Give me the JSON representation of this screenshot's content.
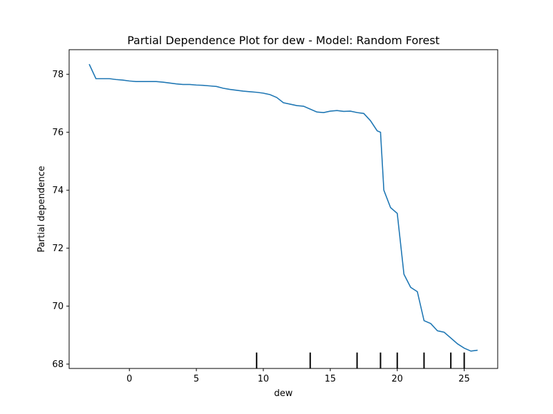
{
  "chart_data": {
    "type": "line",
    "title": "Partial Dependence Plot for dew - Model: Random Forest",
    "xlabel": "dew",
    "ylabel": "Partial dependence",
    "xlim": [
      -4.5,
      27.5
    ],
    "ylim": [
      67.85,
      78.85
    ],
    "xticks": [
      0,
      5,
      10,
      15,
      20,
      25
    ],
    "yticks": [
      68,
      70,
      72,
      74,
      76,
      78
    ],
    "grid": false,
    "line_color": "#1f77b4",
    "series": [
      {
        "x": [
          -3.0,
          -2.5,
          -2.0,
          -1.5,
          -1.0,
          -0.5,
          0.0,
          0.5,
          1.0,
          1.5,
          2.0,
          2.5,
          3.0,
          3.5,
          4.0,
          4.5,
          5.0,
          5.5,
          6.0,
          6.5,
          7.0,
          7.5,
          8.0,
          8.5,
          9.0,
          9.5,
          10.0,
          10.5,
          11.0,
          11.5,
          12.0,
          12.5,
          13.0,
          13.5,
          14.0,
          14.5,
          15.0,
          15.5,
          16.0,
          16.5,
          17.0,
          17.5,
          18.0,
          18.5,
          18.75,
          19.0,
          19.5,
          20.0,
          20.5,
          21.0,
          21.5,
          22.0,
          22.5,
          23.0,
          23.5,
          24.0,
          24.5,
          25.0,
          25.5,
          26.0
        ],
        "y": [
          78.35,
          77.85,
          77.85,
          77.85,
          77.82,
          77.8,
          77.77,
          77.75,
          77.75,
          77.75,
          77.75,
          77.73,
          77.7,
          77.67,
          77.65,
          77.65,
          77.63,
          77.62,
          77.6,
          77.58,
          77.52,
          77.48,
          77.45,
          77.42,
          77.4,
          77.38,
          77.35,
          77.3,
          77.2,
          77.02,
          76.97,
          76.92,
          76.9,
          76.8,
          76.7,
          76.68,
          76.73,
          76.75,
          76.72,
          76.73,
          76.68,
          76.65,
          76.4,
          76.05,
          76.0,
          74.0,
          73.4,
          73.2,
          71.1,
          70.65,
          70.5,
          69.5,
          69.4,
          69.15,
          69.1,
          68.9,
          68.7,
          68.55,
          68.45,
          68.48
        ]
      }
    ],
    "rug_x": [
      9.5,
      13.5,
      17.0,
      18.75,
      20.0,
      22.0,
      24.0,
      25.0
    ]
  }
}
